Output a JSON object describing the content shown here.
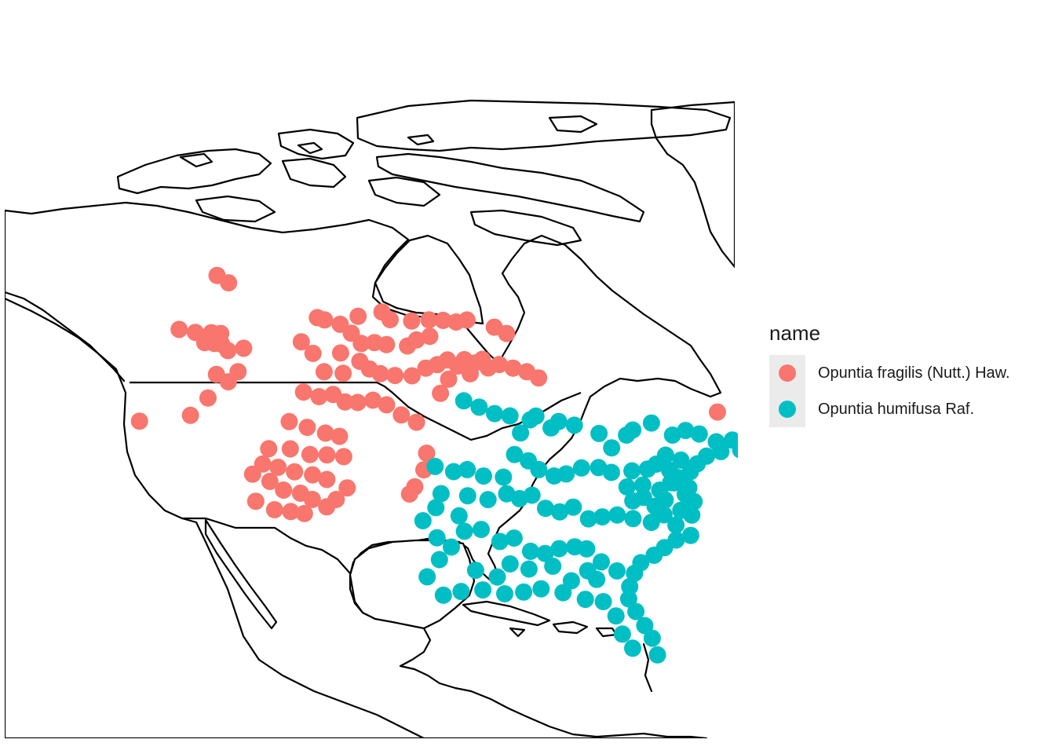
{
  "map": {
    "series": [
      {
        "id": "fragilis",
        "name": "Opuntia fragilis (Nutt.) Haw.",
        "color": "#F8766D",
        "points": [
          [
            -117.5,
            54.2
          ],
          [
            -116.2,
            53.6
          ],
          [
            -119.9,
            50.4
          ],
          [
            -118.3,
            50.1
          ],
          [
            -116.8,
            50.0
          ],
          [
            -115.9,
            49.9
          ],
          [
            -117.2,
            49.3
          ],
          [
            -116.3,
            49.2
          ],
          [
            -115.6,
            49.1
          ],
          [
            -114.9,
            48.6
          ],
          [
            -113.5,
            48.7
          ],
          [
            -115.5,
            46.9
          ],
          [
            -113.6,
            47.0
          ],
          [
            -114.3,
            46.3
          ],
          [
            -115.8,
            45.2
          ],
          [
            -117.0,
            44.0
          ],
          [
            -121.3,
            43.8
          ],
          [
            -107.1,
            50.6
          ],
          [
            -106.4,
            50.4
          ],
          [
            -104.9,
            50.0
          ],
          [
            -103.3,
            50.5
          ],
          [
            -101.1,
            50.7
          ],
          [
            -100.3,
            50.1
          ],
          [
            -98.3,
            49.9
          ],
          [
            -96.7,
            49.9
          ],
          [
            -95.4,
            49.8
          ],
          [
            -94.2,
            49.7
          ],
          [
            -93.2,
            49.9
          ],
          [
            -90.7,
            49.5
          ],
          [
            -89.6,
            49.1
          ],
          [
            -103.8,
            49.3
          ],
          [
            -102.8,
            48.5
          ],
          [
            -101.6,
            48.5
          ],
          [
            -100.5,
            48.3
          ],
          [
            -98.6,
            48.1
          ],
          [
            -97.8,
            48.5
          ],
          [
            -96.6,
            48.7
          ],
          [
            -108.3,
            48.9
          ],
          [
            -107.1,
            48.0
          ],
          [
            -104.6,
            47.9
          ],
          [
            -105.9,
            46.6
          ],
          [
            -104.2,
            46.4
          ],
          [
            -102.8,
            47.2
          ],
          [
            -101.9,
            46.6
          ],
          [
            -100.9,
            46.2
          ],
          [
            -99.6,
            46.0
          ],
          [
            -98.1,
            45.9
          ],
          [
            -96.9,
            46.4
          ],
          [
            -95.9,
            46.6
          ],
          [
            -95.0,
            46.9
          ],
          [
            -94.1,
            46.5
          ],
          [
            -93.5,
            47.0
          ],
          [
            -92.6,
            46.8
          ],
          [
            -91.9,
            47.1
          ],
          [
            -90.4,
            46.8
          ],
          [
            -89.2,
            46.6
          ],
          [
            -88.0,
            46.4
          ],
          [
            -87.0,
            46.0
          ],
          [
            -91.4,
            46.5
          ],
          [
            -93.0,
            46.0
          ],
          [
            -94.9,
            45.5
          ],
          [
            -95.6,
            44.5
          ],
          [
            -107.5,
            45.2
          ],
          [
            -106.1,
            44.8
          ],
          [
            -104.9,
            44.9
          ],
          [
            -103.8,
            44.3
          ],
          [
            -102.7,
            44.2
          ],
          [
            -101.4,
            44.3
          ],
          [
            -100.2,
            43.9
          ],
          [
            -98.9,
            43.1
          ],
          [
            -97.6,
            42.5
          ],
          [
            -108.4,
            43.1
          ],
          [
            -106.8,
            42.6
          ],
          [
            -105.2,
            42.1
          ],
          [
            -104.0,
            41.8
          ],
          [
            -108.0,
            41.1
          ],
          [
            -106.3,
            40.6
          ],
          [
            -104.9,
            40.5
          ],
          [
            -103.5,
            40.3
          ],
          [
            -108.8,
            39.8
          ],
          [
            -107.4,
            39.4
          ],
          [
            -105.9,
            39.1
          ],
          [
            -104.7,
            38.7
          ],
          [
            -108.1,
            38.1
          ],
          [
            -106.7,
            37.8
          ],
          [
            -105.7,
            37.3
          ],
          [
            -108.6,
            36.7
          ],
          [
            -107.3,
            36.5
          ],
          [
            -106.2,
            36.3
          ],
          [
            -104.5,
            36.7
          ],
          [
            -103.8,
            37.2
          ],
          [
            -103.0,
            38.0
          ],
          [
            -110.2,
            37.4
          ],
          [
            -109.3,
            38.8
          ],
          [
            -110.8,
            39.4
          ],
          [
            -109.8,
            41.2
          ],
          [
            -110.1,
            40.1
          ],
          [
            -96.7,
            40.2
          ],
          [
            -96.9,
            39.0
          ],
          [
            -97.6,
            37.8
          ],
          [
            -98.0,
            37.3
          ],
          [
            -71.8,
            44.3
          ]
        ]
      },
      {
        "id": "humifusa",
        "name": "Opuntia humifusa Raf.",
        "color": "#00BFC4",
        "points": [
          [
            -93.6,
            44.0
          ],
          [
            -92.3,
            43.6
          ],
          [
            -91.0,
            43.2
          ],
          [
            -89.7,
            43.1
          ],
          [
            -88.9,
            41.9
          ],
          [
            -88.0,
            42.9
          ],
          [
            -87.5,
            43.2
          ],
          [
            -86.3,
            42.4
          ],
          [
            -85.6,
            42.9
          ],
          [
            -84.3,
            42.7
          ],
          [
            -82.3,
            42.2
          ],
          [
            -81.4,
            41.2
          ],
          [
            -80.0,
            42.2
          ],
          [
            -79.4,
            42.6
          ],
          [
            -77.7,
            43.2
          ],
          [
            -76.1,
            42.4
          ],
          [
            -74.9,
            42.8
          ],
          [
            -73.8,
            42.6
          ],
          [
            -72.5,
            42.1
          ],
          [
            -71.1,
            42.3
          ],
          [
            -70.6,
            41.6
          ],
          [
            -69.9,
            41.9
          ],
          [
            -72.3,
            41.4
          ],
          [
            -73.6,
            41.0
          ],
          [
            -74.5,
            40.4
          ],
          [
            -75.2,
            39.8
          ],
          [
            -75.8,
            40.6
          ],
          [
            -77.0,
            40.9
          ],
          [
            -76.3,
            39.3
          ],
          [
            -75.6,
            38.6
          ],
          [
            -77.0,
            38.9
          ],
          [
            -78.0,
            38.3
          ],
          [
            -79.3,
            38.6
          ],
          [
            -80.6,
            38.4
          ],
          [
            -81.7,
            39.4
          ],
          [
            -82.7,
            39.7
          ],
          [
            -84.1,
            39.6
          ],
          [
            -85.4,
            39.1
          ],
          [
            -86.4,
            38.9
          ],
          [
            -87.6,
            39.3
          ],
          [
            -88.4,
            39.9
          ],
          [
            -89.5,
            40.3
          ],
          [
            -90.5,
            38.6
          ],
          [
            -92.1,
            38.6
          ],
          [
            -93.4,
            39.0
          ],
          [
            -94.5,
            38.8
          ],
          [
            -96.0,
            39.2
          ],
          [
            -95.5,
            37.2
          ],
          [
            -93.4,
            37.1
          ],
          [
            -91.8,
            36.9
          ],
          [
            -90.3,
            37.4
          ],
          [
            -89.3,
            37.1
          ],
          [
            -88.3,
            37.4
          ],
          [
            -87.3,
            36.5
          ],
          [
            -86.2,
            36.3
          ],
          [
            -85.1,
            36.7
          ],
          [
            -84.0,
            35.9
          ],
          [
            -82.9,
            36.1
          ],
          [
            -81.7,
            36.3
          ],
          [
            -80.5,
            36.1
          ],
          [
            -79.1,
            35.9
          ],
          [
            -78.0,
            36.5
          ],
          [
            -77.2,
            35.8
          ],
          [
            -76.6,
            36.9
          ],
          [
            -75.8,
            36.6
          ],
          [
            -76.2,
            35.1
          ],
          [
            -77.4,
            34.7
          ],
          [
            -78.4,
            34.1
          ],
          [
            -79.3,
            33.5
          ],
          [
            -80.4,
            32.9
          ],
          [
            -81.0,
            32.1
          ],
          [
            -81.5,
            31.1
          ],
          [
            -81.7,
            30.2
          ],
          [
            -81.3,
            29.3
          ],
          [
            -80.8,
            28.3
          ],
          [
            -80.4,
            27.4
          ],
          [
            -80.2,
            26.2
          ],
          [
            -81.9,
            26.6
          ],
          [
            -82.5,
            27.6
          ],
          [
            -82.8,
            28.9
          ],
          [
            -83.6,
            29.9
          ],
          [
            -84.9,
            30.0
          ],
          [
            -86.5,
            30.4
          ],
          [
            -88.1,
            30.6
          ],
          [
            -89.4,
            30.3
          ],
          [
            -90.8,
            30.1
          ],
          [
            -92.4,
            30.3
          ],
          [
            -94.0,
            30.1
          ],
          [
            -95.3,
            29.8
          ],
          [
            -96.5,
            31.2
          ],
          [
            -95.6,
            32.4
          ],
          [
            -94.7,
            33.3
          ],
          [
            -93.7,
            34.5
          ],
          [
            -92.4,
            34.7
          ],
          [
            -91.0,
            33.9
          ],
          [
            -89.9,
            34.2
          ],
          [
            -88.7,
            33.3
          ],
          [
            -87.6,
            33.2
          ],
          [
            -86.5,
            33.6
          ],
          [
            -85.3,
            33.8
          ],
          [
            -84.4,
            33.7
          ],
          [
            -83.4,
            32.8
          ],
          [
            -82.3,
            32.2
          ],
          [
            -83.9,
            31.5
          ],
          [
            -84.5,
            32.1
          ],
          [
            -85.8,
            31.3
          ],
          [
            -87.1,
            32.3
          ],
          [
            -88.9,
            32.0
          ],
          [
            -90.3,
            32.3
          ],
          [
            -91.3,
            31.3
          ],
          [
            -92.9,
            31.7
          ],
          [
            -95.8,
            34.0
          ],
          [
            -96.9,
            35.3
          ],
          [
            -95.9,
            36.2
          ],
          [
            -94.1,
            35.6
          ],
          [
            -80.3,
            37.4
          ],
          [
            -79.4,
            37.7
          ],
          [
            -78.6,
            37.1
          ],
          [
            -77.7,
            37.6
          ],
          [
            -80.0,
            39.6
          ],
          [
            -78.7,
            39.8
          ],
          [
            -77.9,
            40.2
          ],
          [
            -76.9,
            39.8
          ],
          [
            -76.7,
            38.9
          ],
          [
            -76.0,
            38.1
          ],
          [
            -75.4,
            37.6
          ]
        ]
      }
    ]
  },
  "legend": {
    "title": "name",
    "items": [
      {
        "label": "Opuntia fragilis (Nutt.) Haw.",
        "color": "#F8766D"
      },
      {
        "label": "Opuntia humifusa Raf.",
        "color": "#00BFC4"
      }
    ]
  }
}
